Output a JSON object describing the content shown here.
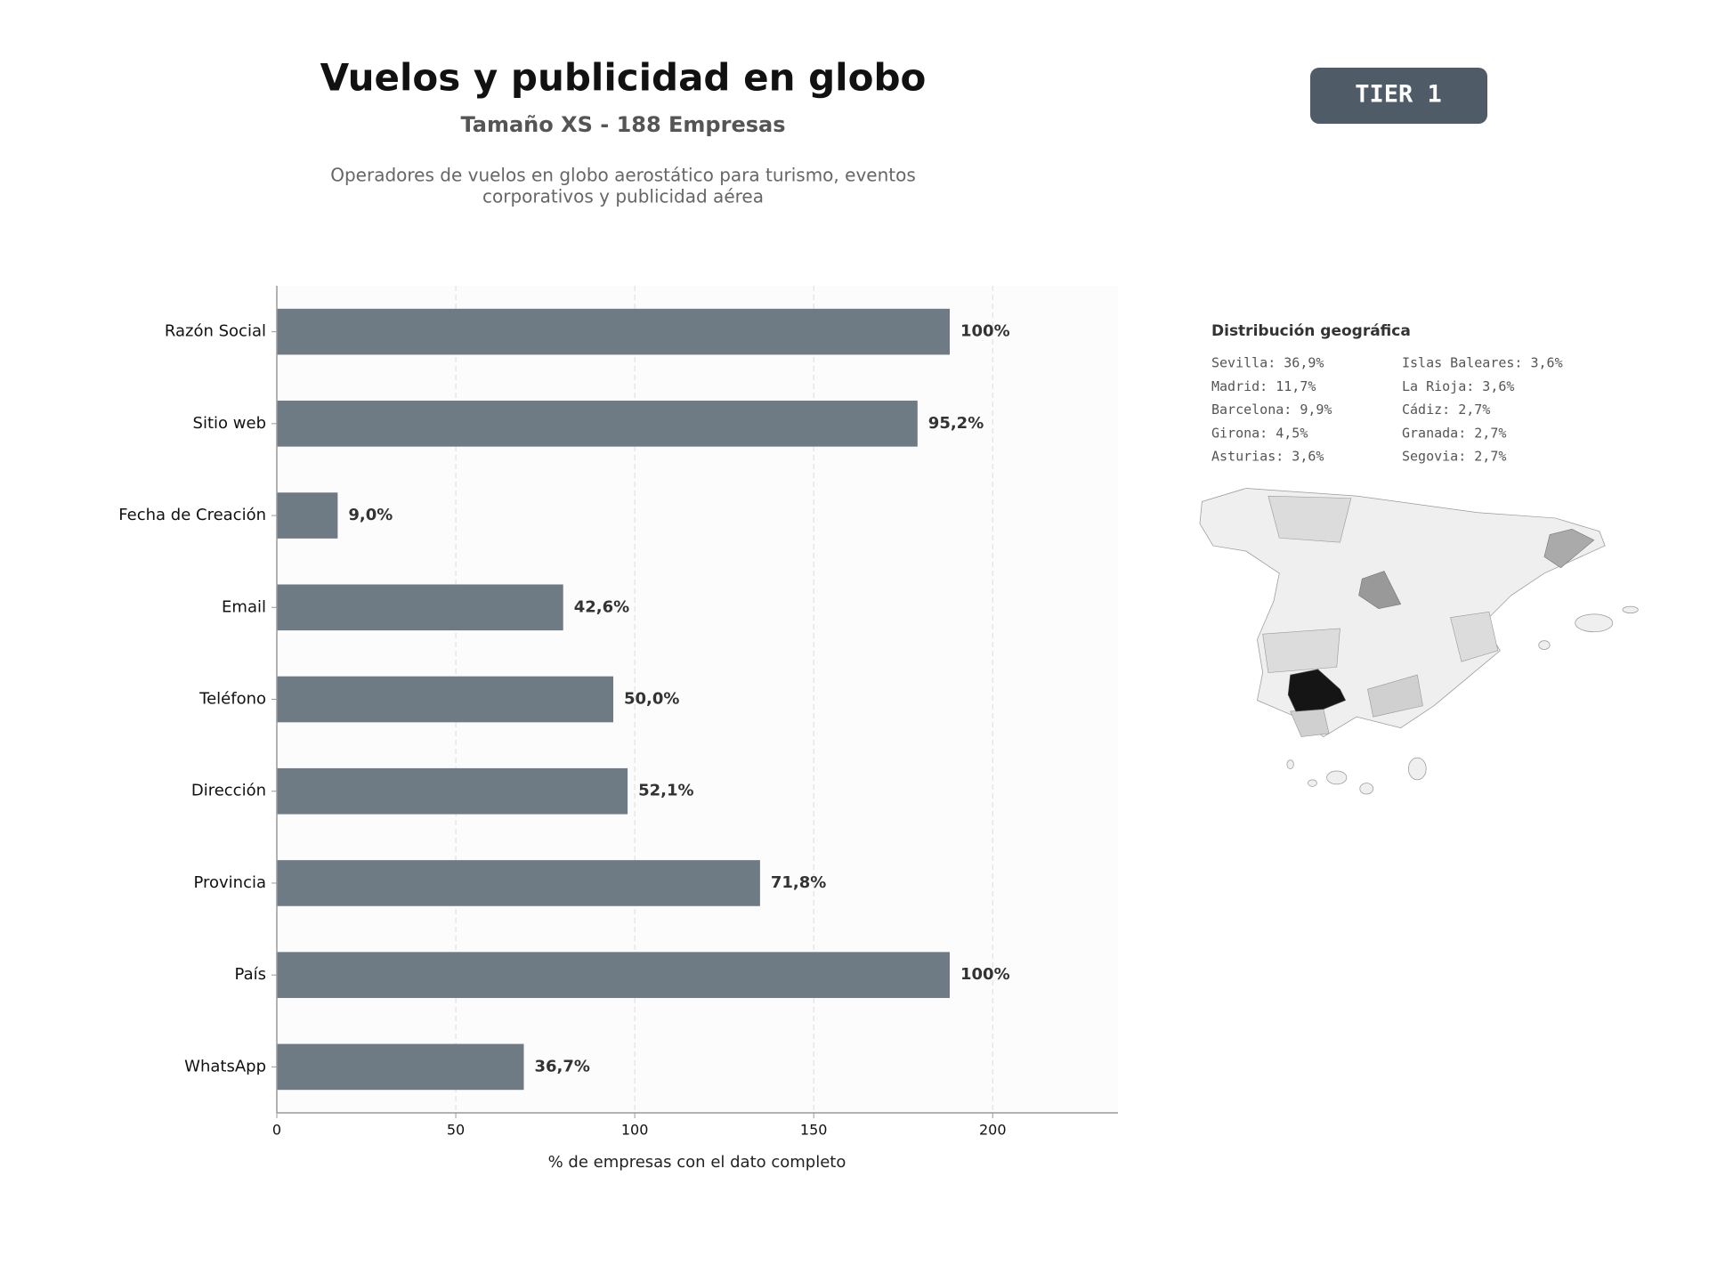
{
  "chart_data": {
    "type": "barh",
    "title": "Vuelos y publicidad en globo",
    "subtitle": "Tamaño XS - 188 Empresas",
    "description": [
      "Operadores de vuelos en globo aerostático para turismo, eventos",
      "corporativos y publicidad aérea"
    ],
    "badge": "TIER 1",
    "categories": [
      "Razón Social",
      "Sitio web",
      "Fecha de Creación",
      "Email",
      "Teléfono",
      "Dirección",
      "Provincia",
      "País",
      "WhatsApp"
    ],
    "values": [
      188,
      179,
      17,
      80,
      94,
      98,
      135,
      188,
      69
    ],
    "value_labels": [
      "100%",
      "95,2%",
      "9,0%",
      "42,6%",
      "50,0%",
      "52,1%",
      "71,8%",
      "100%",
      "36,7%"
    ],
    "color": "#6e7a84",
    "xlim": [
      0,
      235
    ],
    "xticks": [
      0,
      50,
      100,
      150,
      200
    ],
    "xlabel": "% de empresas con el dato completo",
    "grid": true
  },
  "geo": {
    "title": "Distribución geográfica",
    "items": [
      "Sevilla: 36,9%",
      "Madrid: 11,7%",
      "Barcelona: 9,9%",
      "Girona: 4,5%",
      "Asturias: 3,6%",
      "Islas Baleares: 3,6%",
      "La Rioja: 3,6%",
      "Cádiz: 2,7%",
      "Granada: 2,7%",
      "Segovia: 2,7%"
    ]
  }
}
